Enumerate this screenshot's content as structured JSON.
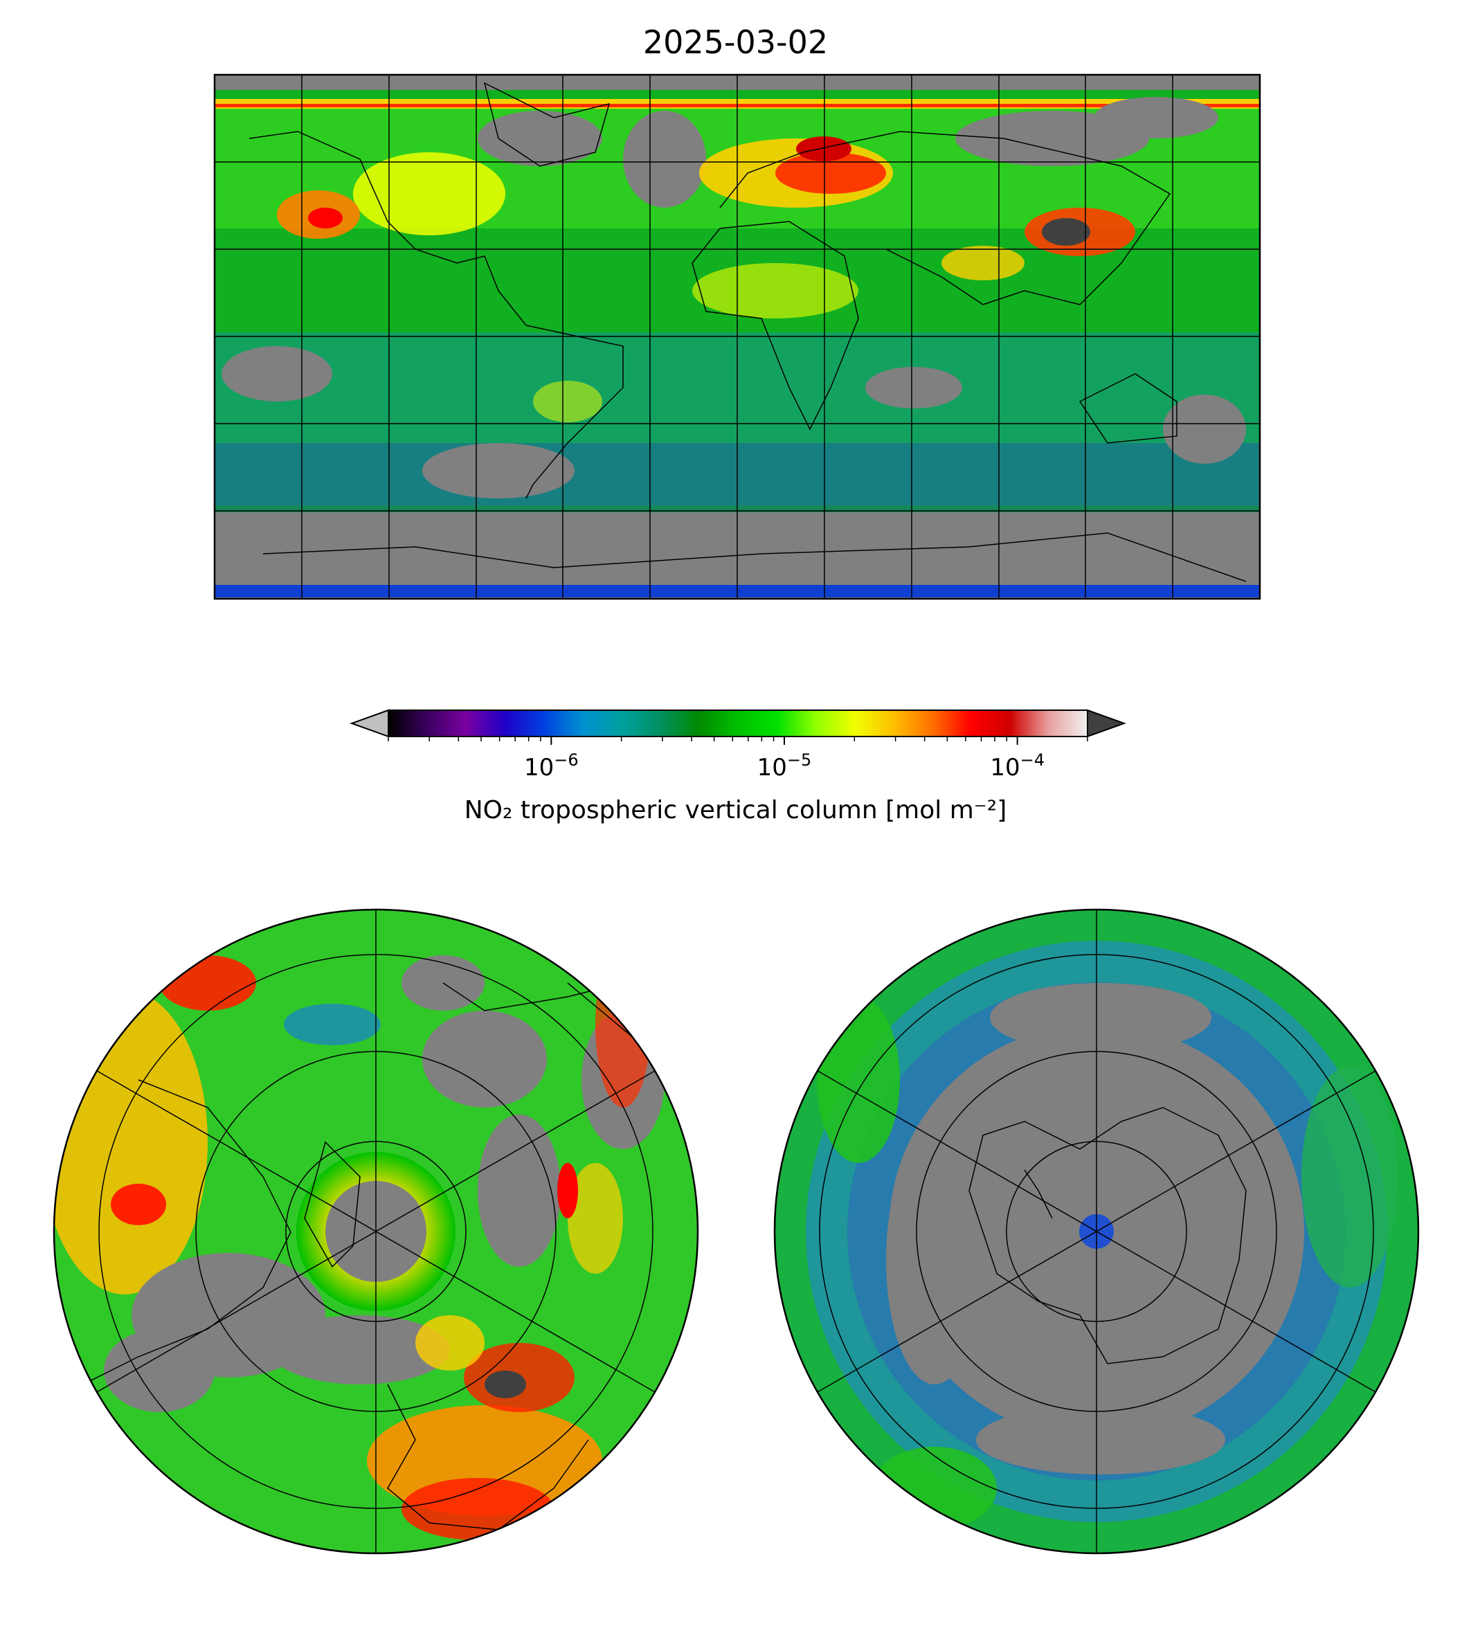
{
  "title": "2025-03-02",
  "colorbar": {
    "label": "NO₂ tropospheric vertical column [mol m⁻²]",
    "scale": "log",
    "vmin": 2e-07,
    "vmax": 0.0002,
    "ticks": [
      {
        "value": 1e-06,
        "base": "10",
        "exp": "−6"
      },
      {
        "value": 1e-05,
        "base": "10",
        "exp": "−5"
      },
      {
        "value": 0.0001,
        "base": "10",
        "exp": "−4"
      }
    ],
    "extend": "both",
    "colors": [
      "#000000",
      "#3a0060",
      "#7a00a0",
      "#2000c8",
      "#0040e0",
      "#0090d0",
      "#00a0a0",
      "#009060",
      "#008a00",
      "#00c000",
      "#00e000",
      "#90ff00",
      "#f0ff00",
      "#ffc000",
      "#ff7000",
      "#ff0000",
      "#d00000",
      "#e8a0a0",
      "#f0f0f0"
    ],
    "under_color": "#c0c0c0",
    "over_color": "#404040"
  },
  "maps": {
    "global": {
      "projection": "plate-carree",
      "background": "#808080"
    },
    "north": {
      "projection": "north-polar-stereo",
      "background": "#808080"
    },
    "south": {
      "projection": "south-polar-stereo",
      "background": "#808080"
    }
  }
}
